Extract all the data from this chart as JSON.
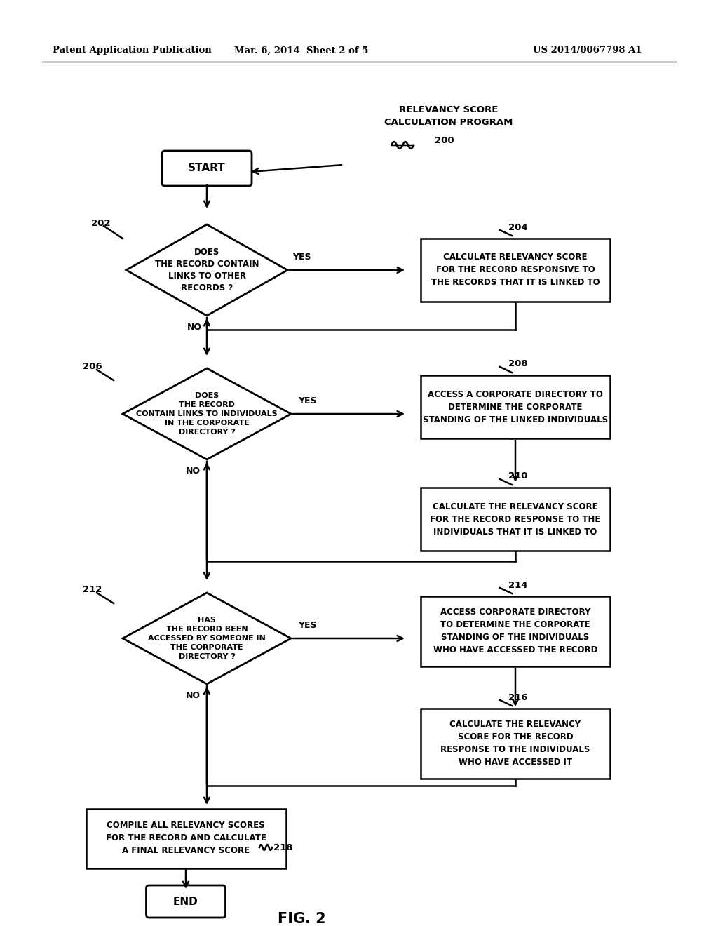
{
  "bg_color": "#ffffff",
  "header_left": "Patent Application Publication",
  "header_mid": "Mar. 6, 2014  Sheet 2 of 5",
  "header_right": "US 2014/0067798 A1",
  "fig_label": "FIG. 2",
  "line_color": "#000000",
  "text_color": "#000000"
}
